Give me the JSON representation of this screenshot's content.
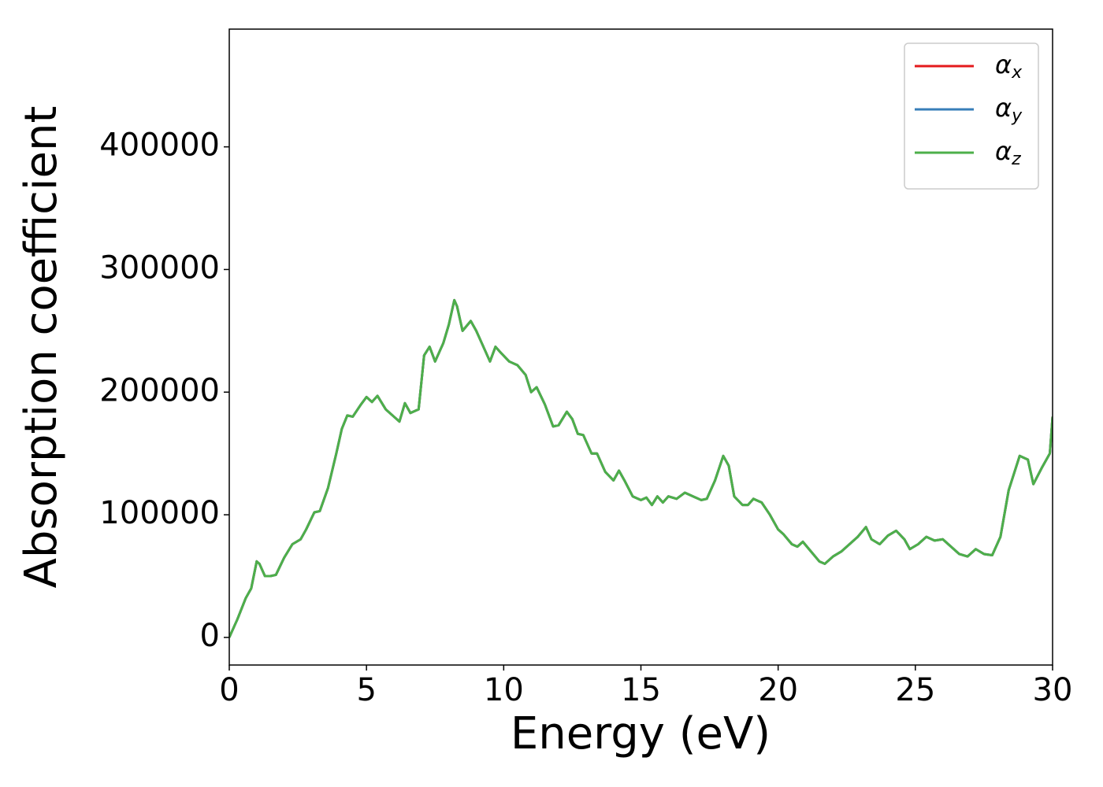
{
  "chart_data": {
    "type": "line",
    "xlabel": "Energy (eV)",
    "ylabel": "Absorption coefficient",
    "x": [
      0,
      0.3,
      0.6,
      0.8,
      1.0,
      1.1,
      1.3,
      1.5,
      1.7,
      2.0,
      2.3,
      2.6,
      2.8,
      3.1,
      3.3,
      3.6,
      3.9,
      4.1,
      4.3,
      4.5,
      4.8,
      5.0,
      5.2,
      5.4,
      5.7,
      6.0,
      6.2,
      6.4,
      6.6,
      6.9,
      7.1,
      7.3,
      7.5,
      7.8,
      8.0,
      8.2,
      8.3,
      8.5,
      8.8,
      9.0,
      9.2,
      9.5,
      9.7,
      9.9,
      10.2,
      10.5,
      10.8,
      11.0,
      11.2,
      11.5,
      11.8,
      12.0,
      12.3,
      12.5,
      12.7,
      12.9,
      13.2,
      13.4,
      13.7,
      14.0,
      14.2,
      14.4,
      14.7,
      15.0,
      15.2,
      15.4,
      15.6,
      15.8,
      16.0,
      16.3,
      16.6,
      16.9,
      17.2,
      17.4,
      17.7,
      18.0,
      18.2,
      18.4,
      18.7,
      18.9,
      19.1,
      19.4,
      19.7,
      20.0,
      20.2,
      20.5,
      20.7,
      20.9,
      21.2,
      21.5,
      21.7,
      22.0,
      22.3,
      22.6,
      22.9,
      23.2,
      23.4,
      23.7,
      24.0,
      24.3,
      24.6,
      24.8,
      25.1,
      25.4,
      25.7,
      26.0,
      26.3,
      26.6,
      26.9,
      27.2,
      27.5,
      27.8,
      28.1,
      28.4,
      28.8,
      29.1,
      29.3,
      29.6,
      29.9,
      30.0
    ],
    "series": [
      {
        "name": "αx",
        "color": "#e41a1c",
        "values": [
          0,
          15000,
          32000,
          40000,
          62000,
          60000,
          50000,
          50000,
          51000,
          65000,
          76000,
          80000,
          88000,
          102000,
          103000,
          122000,
          150000,
          170000,
          181000,
          180000,
          190000,
          196000,
          192000,
          197000,
          186000,
          180000,
          176000,
          191000,
          183000,
          186000,
          230000,
          237000,
          225000,
          240000,
          255000,
          275000,
          270000,
          250000,
          258000,
          250000,
          240000,
          225000,
          237000,
          232000,
          225000,
          222000,
          214000,
          200000,
          204000,
          190000,
          172000,
          173000,
          184000,
          178000,
          166000,
          165000,
          150000,
          150000,
          135000,
          128000,
          136000,
          128000,
          115000,
          112000,
          114000,
          108000,
          115000,
          110000,
          115000,
          113000,
          118000,
          115000,
          112000,
          113000,
          128000,
          148000,
          140000,
          115000,
          108000,
          108000,
          113000,
          110000,
          100000,
          88000,
          84000,
          76000,
          74000,
          78000,
          70000,
          62000,
          60000,
          66000,
          70000,
          76000,
          82000,
          90000,
          80000,
          76000,
          83000,
          87000,
          80000,
          72000,
          76000,
          82000,
          79000,
          80000,
          74000,
          68000,
          66000,
          72000,
          68000,
          67000,
          82000,
          120000,
          148000,
          145000,
          125000,
          138000,
          150000,
          180000
        ]
      },
      {
        "name": "αy",
        "color": "#377eb8",
        "values": [
          0,
          15000,
          32000,
          40000,
          62000,
          60000,
          50000,
          50000,
          51000,
          65000,
          76000,
          80000,
          88000,
          102000,
          103000,
          122000,
          150000,
          170000,
          181000,
          180000,
          190000,
          196000,
          192000,
          197000,
          186000,
          180000,
          176000,
          191000,
          183000,
          186000,
          230000,
          237000,
          225000,
          240000,
          255000,
          275000,
          270000,
          250000,
          258000,
          250000,
          240000,
          225000,
          237000,
          232000,
          225000,
          222000,
          214000,
          200000,
          204000,
          190000,
          172000,
          173000,
          184000,
          178000,
          166000,
          165000,
          150000,
          150000,
          135000,
          128000,
          136000,
          128000,
          115000,
          112000,
          114000,
          108000,
          115000,
          110000,
          115000,
          113000,
          118000,
          115000,
          112000,
          113000,
          128000,
          148000,
          140000,
          115000,
          108000,
          108000,
          113000,
          110000,
          100000,
          88000,
          84000,
          76000,
          74000,
          78000,
          70000,
          62000,
          60000,
          66000,
          70000,
          76000,
          82000,
          90000,
          80000,
          76000,
          83000,
          87000,
          80000,
          72000,
          76000,
          82000,
          79000,
          80000,
          74000,
          68000,
          66000,
          72000,
          68000,
          67000,
          82000,
          120000,
          148000,
          145000,
          125000,
          138000,
          150000,
          180000
        ]
      },
      {
        "name": "αz",
        "color": "#4daf4a",
        "values": [
          0,
          15000,
          32000,
          40000,
          62000,
          60000,
          50000,
          50000,
          51000,
          65000,
          76000,
          80000,
          88000,
          102000,
          103000,
          122000,
          150000,
          170000,
          181000,
          180000,
          190000,
          196000,
          192000,
          197000,
          186000,
          180000,
          176000,
          191000,
          183000,
          186000,
          230000,
          237000,
          225000,
          240000,
          255000,
          275000,
          270000,
          250000,
          258000,
          250000,
          240000,
          225000,
          237000,
          232000,
          225000,
          222000,
          214000,
          200000,
          204000,
          190000,
          172000,
          173000,
          184000,
          178000,
          166000,
          165000,
          150000,
          150000,
          135000,
          128000,
          136000,
          128000,
          115000,
          112000,
          114000,
          108000,
          115000,
          110000,
          115000,
          113000,
          118000,
          115000,
          112000,
          113000,
          128000,
          148000,
          140000,
          115000,
          108000,
          108000,
          113000,
          110000,
          100000,
          88000,
          84000,
          76000,
          74000,
          78000,
          70000,
          62000,
          60000,
          66000,
          70000,
          76000,
          82000,
          90000,
          80000,
          76000,
          83000,
          87000,
          80000,
          72000,
          76000,
          82000,
          79000,
          80000,
          74000,
          68000,
          66000,
          72000,
          68000,
          67000,
          82000,
          120000,
          148000,
          145000,
          125000,
          138000,
          150000,
          180000
        ]
      }
    ],
    "xlim": [
      0,
      30
    ],
    "xticks": [
      0,
      5,
      10,
      15,
      20,
      25,
      30
    ],
    "ylim": [
      -22500,
      496000
    ],
    "yticks": [
      0,
      100000,
      200000,
      300000,
      400000
    ],
    "legend": "upper right"
  }
}
